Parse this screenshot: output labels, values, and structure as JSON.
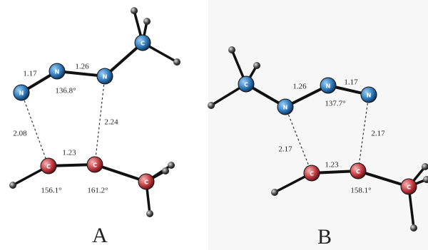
{
  "panels": [
    {
      "label": "A",
      "atoms": [
        "N",
        "N",
        "N",
        "C",
        "C",
        "C",
        "C"
      ],
      "measures": [
        "1.17",
        "1.26",
        "136.8°",
        "2.08",
        "2.24",
        "1.23",
        "156.1°",
        "161.2°"
      ]
    },
    {
      "label": "B",
      "atoms": [
        "C",
        "N",
        "N",
        "N",
        "C",
        "C",
        "C"
      ],
      "measures": [
        "1.26",
        "1.17",
        "137.7°",
        "2.17",
        "2.17",
        "1.23",
        "158.1°"
      ]
    }
  ]
}
